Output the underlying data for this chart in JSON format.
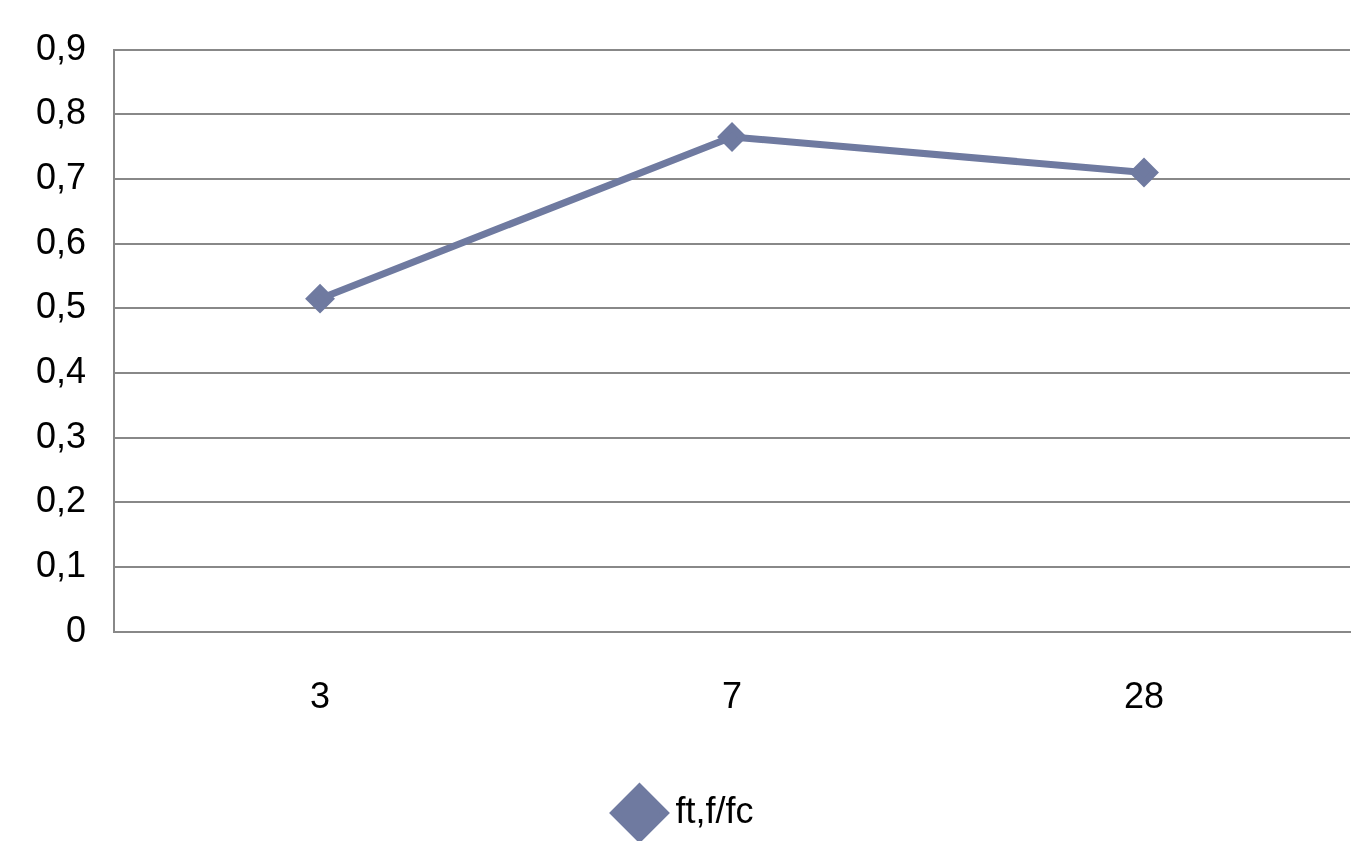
{
  "chart_data": {
    "type": "line",
    "categories": [
      "3",
      "7",
      "28"
    ],
    "series": [
      {
        "name": "ft,f/fc",
        "color": "#6f7aa0",
        "values": [
          0.515,
          0.765,
          0.71
        ]
      }
    ],
    "ylim": [
      0,
      0.9
    ],
    "yticks": [
      0,
      {
        "value": 0.1,
        "label": "0,1"
      },
      {
        "value": 0.2,
        "label": "0,2"
      },
      {
        "value": 0.3,
        "label": "0,3"
      },
      {
        "value": 0.4,
        "label": "0,4"
      },
      {
        "value": 0.5,
        "label": "0,5"
      },
      {
        "value": 0.6,
        "label": "0,6"
      },
      {
        "value": 0.7,
        "label": "0,7"
      },
      {
        "value": 0.8,
        "label": "0,8"
      },
      {
        "value": 0.9,
        "label": "0,9"
      }
    ],
    "grid": "y",
    "legend": "bottom",
    "marker": "diamond",
    "line_style": "solid"
  }
}
